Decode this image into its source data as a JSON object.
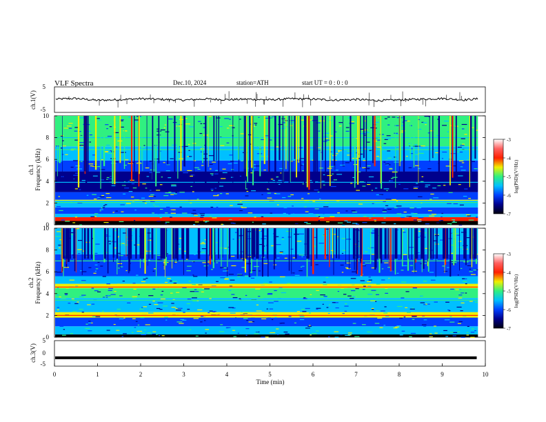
{
  "header": {
    "title": "VLF  Spectra",
    "date": "Dec.10, 2024",
    "station": "station=ATH",
    "start": "start  UT  =    0  : 0  : 0"
  },
  "colors": {
    "deep_blue": "#00008c",
    "blue": "#0040ff",
    "cyan": "#00c0ff",
    "green": "#30f080",
    "yellow": "#f0f000",
    "red": "#ff2000",
    "trace": "#000000"
  },
  "chart_data": [
    {
      "type": "line",
      "title": "",
      "ylabel": "ch.1(V)",
      "ylim": [
        -5,
        5
      ],
      "y_ticks": [
        "5",
        "-5"
      ],
      "x": [
        0,
        0.5,
        1,
        1.5,
        2,
        2.5,
        3,
        3.5,
        4,
        4.5,
        5,
        5.5,
        6,
        6.5,
        7,
        7.5,
        8,
        8.5,
        9,
        9.5,
        9.8
      ],
      "series": [
        {
          "values": [
            0.2,
            0.5,
            -0.3,
            0.0,
            0.4,
            0.1,
            -0.2,
            0.3,
            0.0,
            0.2,
            -0.1,
            0.4,
            0.2,
            -0.2,
            0.1,
            -0.4,
            -0.1,
            0.2,
            0.5,
            -0.1,
            0.3
          ]
        }
      ]
    },
    {
      "type": "heatmap",
      "ylabel": "ch.1\nFrequency  (kHz)",
      "ylim": [
        0,
        10
      ],
      "y_ticks": [
        "0",
        "2",
        "4",
        "6",
        "8",
        "10"
      ],
      "colorbar": {
        "label": "log(PSD)(V²/Hz)",
        "range": [
          -7,
          -3
        ],
        "ticks": [
          "-3",
          "-4",
          "-5",
          "-6",
          "-7"
        ]
      }
    },
    {
      "type": "heatmap",
      "ylabel": "ch.2\nFrequency  (kHz)",
      "ylim": [
        0,
        10
      ],
      "y_ticks": [
        "0",
        "2",
        "4",
        "6",
        "8",
        "10"
      ],
      "colorbar": {
        "label": "log(PSD)(V²/Hz)",
        "range": [
          -7,
          -3
        ],
        "ticks": [
          "-3",
          "-4",
          "-5",
          "-6",
          "-7"
        ]
      }
    },
    {
      "type": "line",
      "ylabel": "ch.3(V)",
      "ylim": [
        -5,
        5
      ],
      "y_ticks": [
        "5",
        "0",
        "-5"
      ],
      "x": [
        0,
        9.8
      ],
      "series": [
        {
          "values": [
            -2,
            -2
          ]
        }
      ]
    }
  ],
  "xaxis": {
    "label": "Time  (min)",
    "range": [
      0,
      10
    ],
    "ticks": [
      "0",
      "1",
      "2",
      "3",
      "4",
      "5",
      "6",
      "7",
      "8",
      "9",
      "10"
    ]
  }
}
